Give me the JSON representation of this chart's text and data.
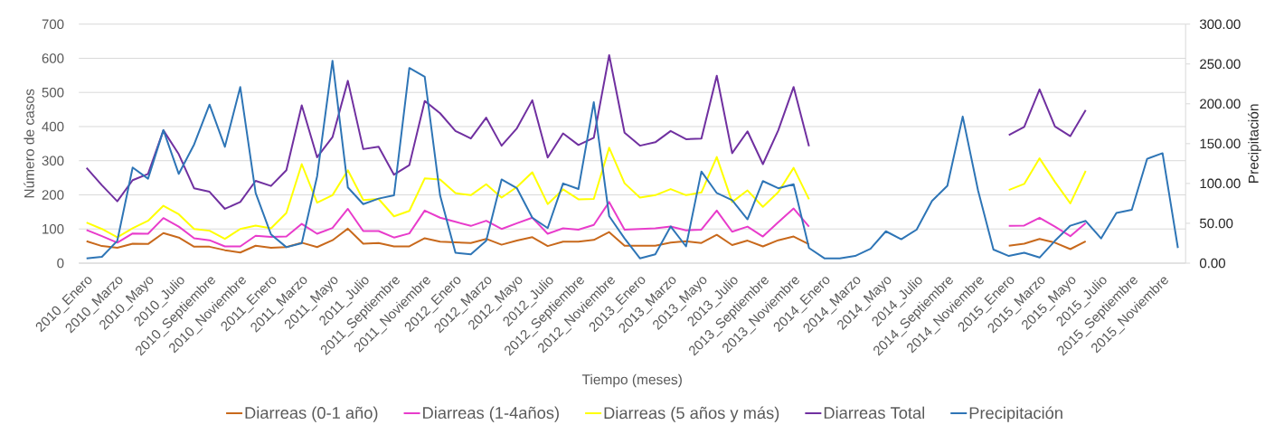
{
  "chart_data": {
    "type": "line",
    "xlabel": "Tiempo (meses)",
    "ylabel": "Número de casos",
    "y2label": "Precipitación",
    "categories": [
      "2010_Enero",
      null,
      "2010_Marzo",
      null,
      "2010_Mayo",
      null,
      "2010_Julio",
      null,
      "2010_Septiembre",
      null,
      "2010_Noviembre",
      null,
      "2011_Enero",
      null,
      "2011_Marzo",
      null,
      "2011_Mayo",
      null,
      "2011_Julio",
      null,
      "2011_Septiembre",
      null,
      "2011_Noviembre",
      null,
      "2012_Enero",
      null,
      "2012_Marzo",
      null,
      "2012_Mayo",
      null,
      "2012_Julio",
      null,
      "2012_Septiembre",
      null,
      "2012_Noviembre",
      null,
      "2013_Enero",
      null,
      "2013_Marzo",
      null,
      "2013_Mayo",
      null,
      "2013_Julio",
      null,
      "2013_Septiembre",
      null,
      "2013_Noviembre",
      null,
      "2014_Enero",
      null,
      "2014_Marzo",
      null,
      "2014_Mayo",
      null,
      "2014_Julio",
      null,
      "2014_Septiembre",
      null,
      "2014_Noviembre",
      null,
      "2015_Enero",
      null,
      "2015_Marzo",
      null,
      "2015_Mayo",
      null,
      "2015_Julio",
      null,
      "2015_Septiembre",
      null,
      "2015_Noviembre",
      null
    ],
    "series": [
      {
        "name": "Diarreas (0-1 año)",
        "color": "#c8691c",
        "values": [
          64,
          50,
          45,
          57,
          56,
          88,
          75,
          48,
          48,
          38,
          31,
          51,
          45,
          47,
          60,
          47,
          67,
          101,
          57,
          59,
          49,
          49,
          73,
          63,
          61,
          59,
          71,
          54,
          66,
          76,
          50,
          63,
          63,
          68,
          91,
          51,
          51,
          51,
          60,
          64,
          59,
          83,
          53,
          66,
          49,
          67,
          78,
          55,
          null,
          null,
          null,
          null,
          null,
          null,
          null,
          null,
          null,
          null,
          null,
          null,
          51,
          57,
          71,
          60,
          41,
          64,
          null,
          null,
          null,
          null,
          null,
          null
        ]
      },
      {
        "name": "Diarreas (1-4años)",
        "color": "#e83ccb",
        "values": [
          97,
          79,
          60,
          87,
          86,
          132,
          107,
          73,
          67,
          49,
          49,
          80,
          77,
          78,
          115,
          86,
          103,
          159,
          94,
          94,
          75,
          87,
          154,
          133,
          121,
          109,
          124,
          100,
          117,
          133,
          86,
          102,
          98,
          112,
          179,
          98,
          100,
          102,
          107,
          96,
          98,
          154,
          92,
          107,
          78,
          120,
          160,
          107,
          null,
          null,
          null,
          null,
          null,
          null,
          null,
          null,
          null,
          null,
          null,
          null,
          109,
          110,
          133,
          107,
          79,
          117,
          null,
          null,
          null,
          null,
          null,
          null
        ]
      },
      {
        "name": "Diarreas (5 años y más)",
        "color": "#ffff00",
        "values": [
          119,
          100,
          76,
          102,
          124,
          168,
          143,
          100,
          95,
          71,
          100,
          110,
          102,
          147,
          290,
          177,
          199,
          272,
          185,
          188,
          137,
          153,
          248,
          245,
          205,
          199,
          231,
          192,
          223,
          266,
          173,
          216,
          187,
          188,
          338,
          234,
          192,
          199,
          217,
          199,
          207,
          311,
          179,
          213,
          165,
          208,
          279,
          187,
          null,
          null,
          null,
          null,
          null,
          null,
          null,
          null,
          null,
          null,
          null,
          null,
          214,
          232,
          307,
          238,
          175,
          270,
          null,
          null,
          null,
          null,
          null,
          null
        ]
      },
      {
        "name": "Diarreas Total",
        "color": "#7030a0",
        "values": [
          279,
          228,
          181,
          243,
          261,
          389,
          319,
          219,
          209,
          159,
          179,
          241,
          226,
          272,
          462,
          310,
          369,
          534,
          334,
          341,
          259,
          287,
          475,
          439,
          387,
          365,
          426,
          344,
          395,
          477,
          309,
          380,
          346,
          367,
          609,
          382,
          344,
          354,
          387,
          363,
          365,
          549,
          322,
          386,
          290,
          389,
          516,
          342,
          null,
          null,
          null,
          null,
          null,
          null,
          null,
          null,
          null,
          null,
          null,
          null,
          375,
          399,
          509,
          400,
          372,
          448,
          null,
          null,
          null,
          null,
          null,
          null
        ]
      },
      {
        "name": "Precipitación",
        "color": "#2e75b6",
        "axis": "y2",
        "values": [
          6,
          8,
          28,
          120,
          106,
          167,
          112,
          149,
          199,
          146,
          221,
          88,
          36,
          20,
          25,
          109,
          254,
          95,
          74,
          81,
          85,
          245,
          234,
          85,
          13,
          11,
          28,
          105,
          94,
          57,
          44,
          100,
          93,
          202,
          59,
          31,
          6,
          11,
          46,
          21,
          115,
          88,
          79,
          55,
          103,
          94,
          99,
          19,
          6,
          6,
          9,
          18,
          40,
          30,
          42,
          78,
          97,
          184,
          91,
          17,
          9,
          13,
          7,
          28,
          47,
          53,
          31,
          63,
          67,
          131,
          138,
          19
        ]
      }
    ],
    "ylim": [
      0,
      700
    ],
    "yticks": [
      0,
      100,
      200,
      300,
      400,
      500,
      600,
      700
    ],
    "y2lim": [
      0,
      300
    ],
    "y2ticks": [
      {
        "value": 0,
        "label": "0.00"
      },
      {
        "value": 50,
        "label": "50.00"
      },
      {
        "value": 100,
        "label": "100.00"
      },
      {
        "value": 150,
        "label": "150.00"
      },
      {
        "value": 200,
        "label": "200.00"
      },
      {
        "value": 250,
        "label": "250.00"
      },
      {
        "value": 300,
        "label": "300.00"
      }
    ],
    "grid": "y",
    "legend": "bottom",
    "marker": "none",
    "line_style": "solid"
  }
}
